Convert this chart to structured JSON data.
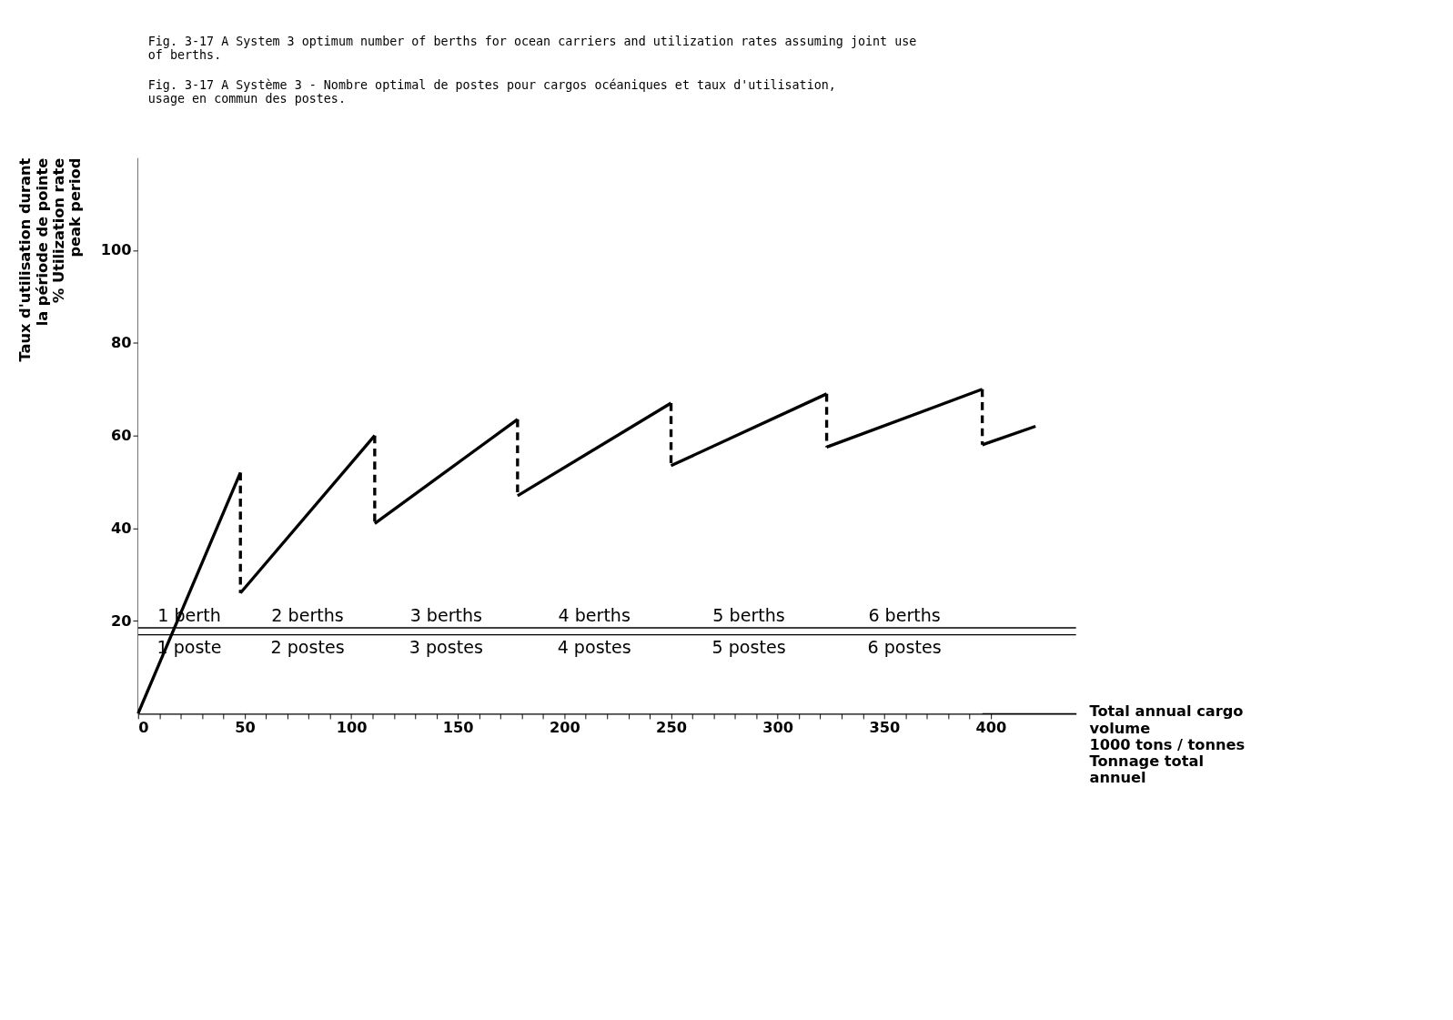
{
  "chart_data": {
    "type": "line",
    "title": [
      "Fig. 3-17 A System 3 optimum number of berths for ocean carriers and utilization rates assuming joint use",
      "            of berths."
    ],
    "subtitle": [
      "Fig. 3-17 A Système 3 - Nombre optimal de postes pour cargos océaniques et taux d'utilisation,",
      "            usage en commun des postes."
    ],
    "ylabel": [
      "Taux d'utilisation durant",
      "la période de pointe",
      "% Utilization rate",
      "peak period"
    ],
    "xlabel": [
      "Total annual cargo",
      "volume",
      "1000 tons / tonnes",
      "Tonnage total",
      "annuel"
    ],
    "series": [
      {
        "color": "#000000",
        "line_style": "solid",
        "x": [
          0,
          48
        ],
        "values": [
          0,
          52
        ]
      },
      {
        "color": "#000000",
        "line_style": "dashed",
        "x": [
          48,
          48
        ],
        "values": [
          52,
          26
        ]
      },
      {
        "color": "#000000",
        "line_style": "solid",
        "x": [
          48,
          111
        ],
        "values": [
          26,
          60
        ]
      },
      {
        "color": "#000000",
        "line_style": "dashed",
        "x": [
          111,
          111
        ],
        "values": [
          60,
          41
        ]
      },
      {
        "color": "#000000",
        "line_style": "solid",
        "x": [
          111,
          178
        ],
        "values": [
          41,
          63.5
        ]
      },
      {
        "color": "#000000",
        "line_style": "dashed",
        "x": [
          178,
          178
        ],
        "values": [
          63.5,
          47
        ]
      },
      {
        "color": "#000000",
        "line_style": "solid",
        "x": [
          178,
          250
        ],
        "values": [
          47,
          67
        ]
      },
      {
        "color": "#000000",
        "line_style": "dashed",
        "x": [
          250,
          250
        ],
        "values": [
          67,
          53.5
        ]
      },
      {
        "color": "#000000",
        "line_style": "solid",
        "x": [
          250,
          323
        ],
        "values": [
          53.5,
          69
        ]
      },
      {
        "color": "#000000",
        "line_style": "dashed",
        "x": [
          323,
          323
        ],
        "values": [
          69,
          57.5
        ]
      },
      {
        "color": "#000000",
        "line_style": "solid",
        "x": [
          323,
          396
        ],
        "values": [
          57.5,
          70
        ]
      },
      {
        "color": "#000000",
        "line_style": "dashed",
        "x": [
          396,
          396
        ],
        "values": [
          70,
          58
        ]
      },
      {
        "color": "#000000",
        "line_style": "solid",
        "x": [
          396,
          421
        ],
        "values": [
          58,
          62
        ]
      }
    ],
    "ref_lines": [
      {
        "axis": "y",
        "value": 18.5,
        "color": "#000000"
      },
      {
        "axis": "y",
        "value": 17,
        "color": "#000000"
      }
    ],
    "bands": [
      {
        "axis": "x",
        "from": 0,
        "to": 48,
        "label": "1 berth\n1 poste",
        "color": "#ffffff"
      },
      {
        "axis": "x",
        "from": 48,
        "to": 111,
        "label": "2 berths\n2 postes",
        "color": "#ffffff"
      },
      {
        "axis": "x",
        "from": 111,
        "to": 178,
        "label": "3 berths\n3 postes",
        "color": "#ffffff"
      },
      {
        "axis": "x",
        "from": 178,
        "to": 250,
        "label": "4 berths\n4 postes",
        "color": "#ffffff"
      },
      {
        "axis": "x",
        "from": 250,
        "to": 323,
        "label": "5 berths\n5 postes",
        "color": "#ffffff"
      },
      {
        "axis": "x",
        "from": 323,
        "to": 396,
        "label": "6 berths\n6 postes",
        "color": "#ffffff"
      }
    ],
    "xlim": [
      0,
      440
    ],
    "ylim": [
      0,
      120
    ],
    "xticks": [
      0,
      {
        "value": 10,
        "label": null
      },
      {
        "value": 20,
        "label": null
      },
      {
        "value": 30,
        "label": null
      },
      {
        "value": 40,
        "label": null
      },
      50,
      {
        "value": 60,
        "label": null
      },
      {
        "value": 70,
        "label": null
      },
      {
        "value": 80,
        "label": null
      },
      {
        "value": 90,
        "label": null
      },
      100,
      {
        "value": 110,
        "label": null
      },
      {
        "value": 120,
        "label": null
      },
      {
        "value": 130,
        "label": null
      },
      {
        "value": 140,
        "label": null
      },
      150,
      {
        "value": 160,
        "label": null
      },
      {
        "value": 170,
        "label": null
      },
      {
        "value": 180,
        "label": null
      },
      {
        "value": 190,
        "label": null
      },
      200,
      {
        "value": 210,
        "label": null
      },
      {
        "value": 220,
        "label": null
      },
      {
        "value": 230,
        "label": null
      },
      {
        "value": 240,
        "label": null
      },
      250,
      {
        "value": 260,
        "label": null
      },
      {
        "value": 270,
        "label": null
      },
      {
        "value": 280,
        "label": null
      },
      {
        "value": 290,
        "label": null
      },
      300,
      {
        "value": 310,
        "label": null
      },
      {
        "value": 320,
        "label": null
      },
      {
        "value": 330,
        "label": null
      },
      {
        "value": 340,
        "label": null
      },
      350,
      {
        "value": 360,
        "label": null
      },
      {
        "value": 370,
        "label": null
      },
      {
        "value": 380,
        "label": null
      },
      {
        "value": 390,
        "label": null
      },
      400
    ],
    "yticks": [
      20,
      40,
      60,
      80,
      100
    ],
    "grid": false
  }
}
